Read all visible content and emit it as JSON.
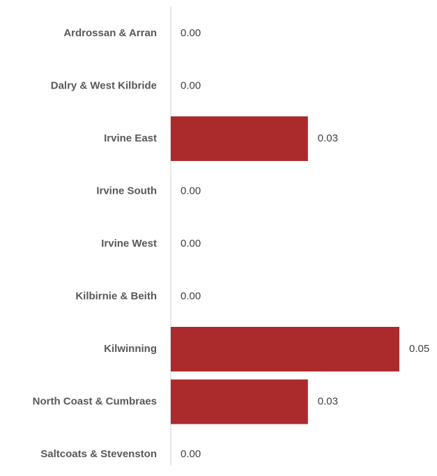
{
  "chart_data": {
    "type": "bar",
    "orientation": "horizontal",
    "categories": [
      "Ardrossan & Arran",
      "Dalry & West Kilbride",
      "Irvine East",
      "Irvine South",
      "Irvine West",
      "Kilbirnie & Beith",
      "Kilwinning",
      "North Coast & Cumbraes",
      "Saltcoats & Stevenston"
    ],
    "values": [
      0,
      0,
      0.03,
      0,
      0,
      0,
      0.05,
      0.03,
      0
    ],
    "value_labels": [
      "0.00",
      "0.00",
      "0.03",
      "0.00",
      "0.00",
      "0.00",
      "0.05",
      "0.03",
      "0.00"
    ],
    "color": "#ab2a2c"
  }
}
